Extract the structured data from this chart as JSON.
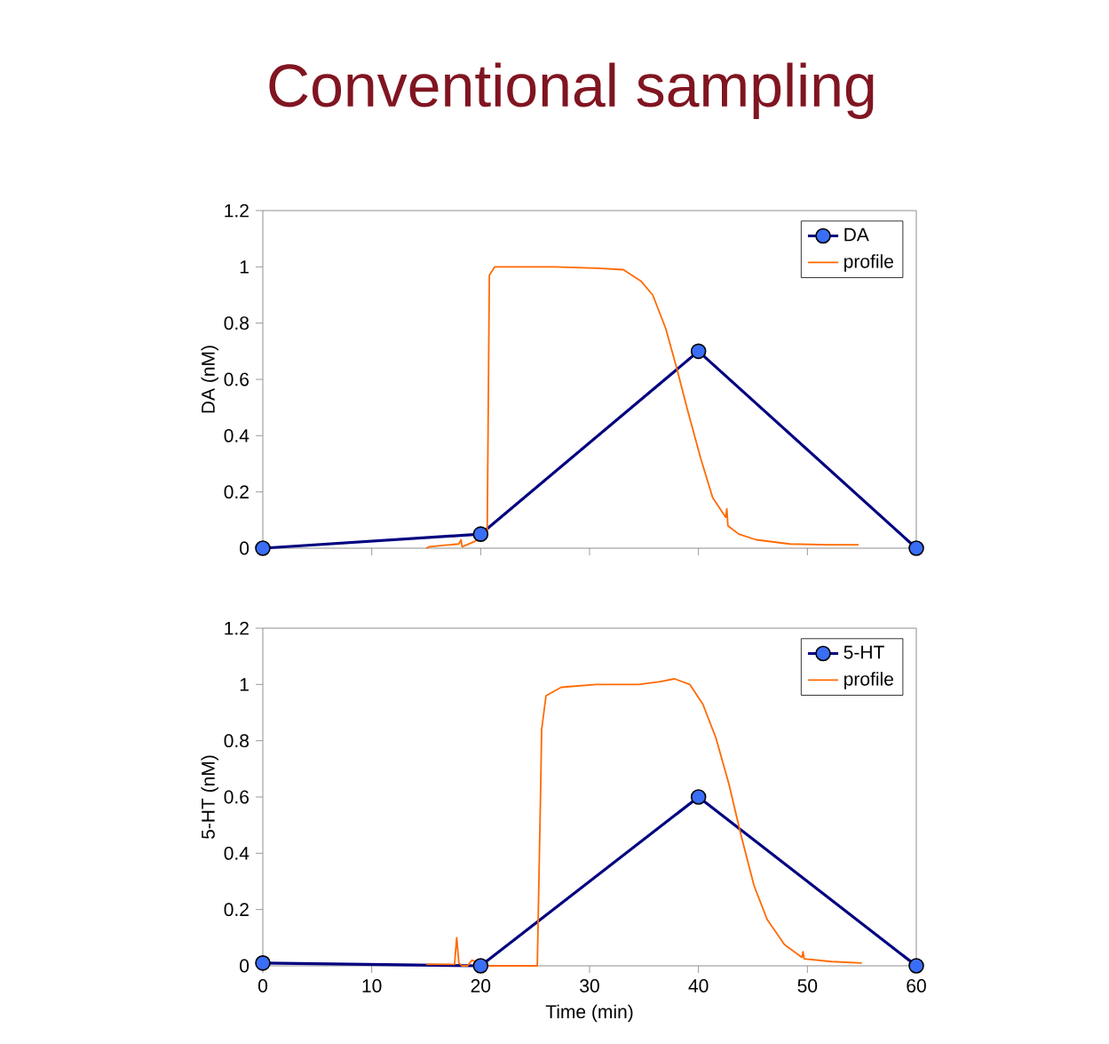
{
  "chart_data": [
    {
      "type": "line",
      "title": "Conventional sampling",
      "ylabel": "DA (nM)",
      "xlim": [
        0,
        60
      ],
      "xticks": [
        0,
        10,
        20,
        30,
        40,
        50,
        60
      ],
      "ylim": [
        0,
        1.2
      ],
      "yticks": [
        0,
        0.2,
        0.4,
        0.6,
        0.8,
        1,
        1.2
      ],
      "tick_labels": "y",
      "legend": "top right",
      "marker": "circle",
      "series": [
        {
          "name": "DA",
          "color": "#000080",
          "x": [
            0,
            20,
            40,
            60
          ],
          "values": [
            0,
            0.05,
            0.7,
            0
          ]
        },
        {
          "name": "profile",
          "color": "#ff6a00",
          "marker": "none",
          "x": [
            15.0,
            15.3,
            16.5,
            18.0,
            18.2,
            18.3,
            19.5,
            20.1,
            20.6,
            20.8,
            21.3,
            22.9,
            26.8,
            30.7,
            33.1,
            34.7,
            35.8,
            37.0,
            38.0,
            39.0,
            40.2,
            41.3,
            42.5,
            42.6,
            42.7,
            43.7,
            45.3,
            48.4,
            51.9,
            54.7
          ],
          "values": [
            0,
            0.005,
            0.01,
            0.015,
            0.03,
            0.005,
            0.025,
            null,
            0.05,
            0.97,
            1.0,
            1.0,
            1.0,
            0.995,
            0.99,
            0.95,
            0.9,
            0.78,
            0.64,
            0.49,
            0.32,
            0.18,
            0.11,
            0.14,
            0.08,
            0.05,
            0.03,
            0.015,
            0.012,
            0.012
          ]
        }
      ]
    },
    {
      "type": "line",
      "xlabel": "Time (min)",
      "ylabel": "5-HT (nM)",
      "xlim": [
        0,
        60
      ],
      "xticks": [
        0,
        10,
        20,
        30,
        40,
        50,
        60
      ],
      "ylim": [
        0,
        1.2
      ],
      "yticks": [
        0,
        0.2,
        0.4,
        0.6,
        0.8,
        1,
        1.2
      ],
      "legend": "top right",
      "marker": "circle",
      "series": [
        {
          "name": "5-HT",
          "color": "#000080",
          "x": [
            0,
            20,
            40,
            60
          ],
          "values": [
            0.01,
            0,
            0.6,
            0
          ]
        },
        {
          "name": "profile",
          "color": "#ff6a00",
          "marker": "none",
          "x": [
            15.0,
            17.6,
            17.8,
            18.0,
            18.3,
            18.8,
            19.2,
            20.3,
            22.7,
            24.9,
            25.2,
            25.5,
            25.6,
            26.0,
            27.4,
            30.6,
            34.5,
            36.5,
            37.8,
            39.2,
            40.4,
            41.6,
            42.8,
            43.9,
            45.1,
            46.3,
            47.9,
            49.5,
            49.6,
            49.7,
            52.2,
            55.0
          ],
          "values": [
            0.005,
            0.005,
            0.1,
            0.01,
            0,
            0,
            0.02,
            0,
            0,
            0,
            0,
            0.61,
            0.84,
            0.96,
            0.99,
            1.0,
            1.0,
            1.01,
            1.02,
            1.0,
            0.93,
            0.81,
            0.645,
            0.465,
            0.285,
            0.165,
            0.075,
            0.03,
            0.05,
            0.025,
            0.015,
            0.01
          ]
        }
      ]
    }
  ]
}
